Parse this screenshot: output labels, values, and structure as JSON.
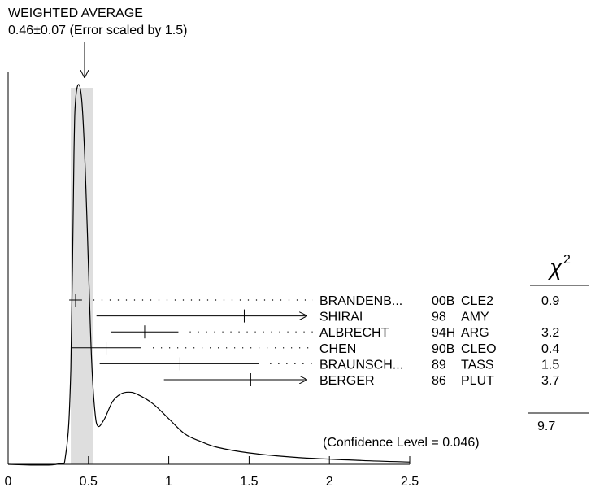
{
  "chart_data": {
    "type": "ideogram",
    "title": "WEIGHTED AVERAGE",
    "subtitle": "0.46±0.07 (Error scaled by 1.5)",
    "weighted_average": {
      "value": 0.46,
      "error": 0.07,
      "error_scale": 1.5
    },
    "xlim": [
      0,
      2.5
    ],
    "x_ticks": [
      "0",
      "0.5",
      "1",
      "1.5",
      "2",
      "2.5"
    ],
    "chi2_header": "χ",
    "chi2_exponent": "2",
    "measurements": [
      {
        "name": "BRANDENB...",
        "year": "00B",
        "experiment": "CLE2",
        "value": 0.42,
        "lower": 0.38,
        "upper": 0.46,
        "chi2": "0.9",
        "arrow_right": false
      },
      {
        "name": "SHIRAI",
        "year": "98",
        "experiment": "AMY",
        "value": 1.47,
        "lower": 0.55,
        "upper": null,
        "chi2": "",
        "arrow_right": true
      },
      {
        "name": "ALBRECHT",
        "year": "94H",
        "experiment": "ARG",
        "value": 0.85,
        "lower": 0.64,
        "upper": 1.06,
        "chi2": "3.2",
        "arrow_right": false
      },
      {
        "name": "CHEN",
        "year": "90B",
        "experiment": "CLEO",
        "value": 0.61,
        "lower": 0.39,
        "upper": 0.83,
        "chi2": "0.4",
        "arrow_right": false
      },
      {
        "name": "BRAUNSCH...",
        "year": "89",
        "experiment": "TASS",
        "value": 1.07,
        "lower": 0.57,
        "upper": 1.56,
        "chi2": "1.5",
        "arrow_right": false
      },
      {
        "name": "BERGER",
        "year": "86",
        "experiment": "PLUT",
        "value": 1.51,
        "lower": 0.97,
        "upper": null,
        "chi2": "3.7",
        "arrow_right": true
      }
    ],
    "chi2_total": "9.7",
    "confidence_level": "(Confidence Level = 0.046)",
    "ideogram_curve": [
      [
        0.0,
        0.0
      ],
      [
        0.3,
        0.0
      ],
      [
        0.36,
        0.03
      ],
      [
        0.39,
        0.25
      ],
      [
        0.41,
        0.82
      ],
      [
        0.42,
        0.96
      ],
      [
        0.44,
        1.0
      ],
      [
        0.46,
        0.95
      ],
      [
        0.48,
        0.78
      ],
      [
        0.5,
        0.52
      ],
      [
        0.52,
        0.27
      ],
      [
        0.54,
        0.14
      ],
      [
        0.56,
        0.1
      ],
      [
        0.6,
        0.12
      ],
      [
        0.65,
        0.165
      ],
      [
        0.7,
        0.185
      ],
      [
        0.75,
        0.19
      ],
      [
        0.8,
        0.185
      ],
      [
        0.9,
        0.16
      ],
      [
        1.0,
        0.12
      ],
      [
        1.1,
        0.08
      ],
      [
        1.2,
        0.06
      ],
      [
        1.3,
        0.045
      ],
      [
        1.5,
        0.03
      ],
      [
        1.8,
        0.018
      ],
      [
        2.2,
        0.01
      ],
      [
        2.5,
        0.006
      ]
    ]
  }
}
